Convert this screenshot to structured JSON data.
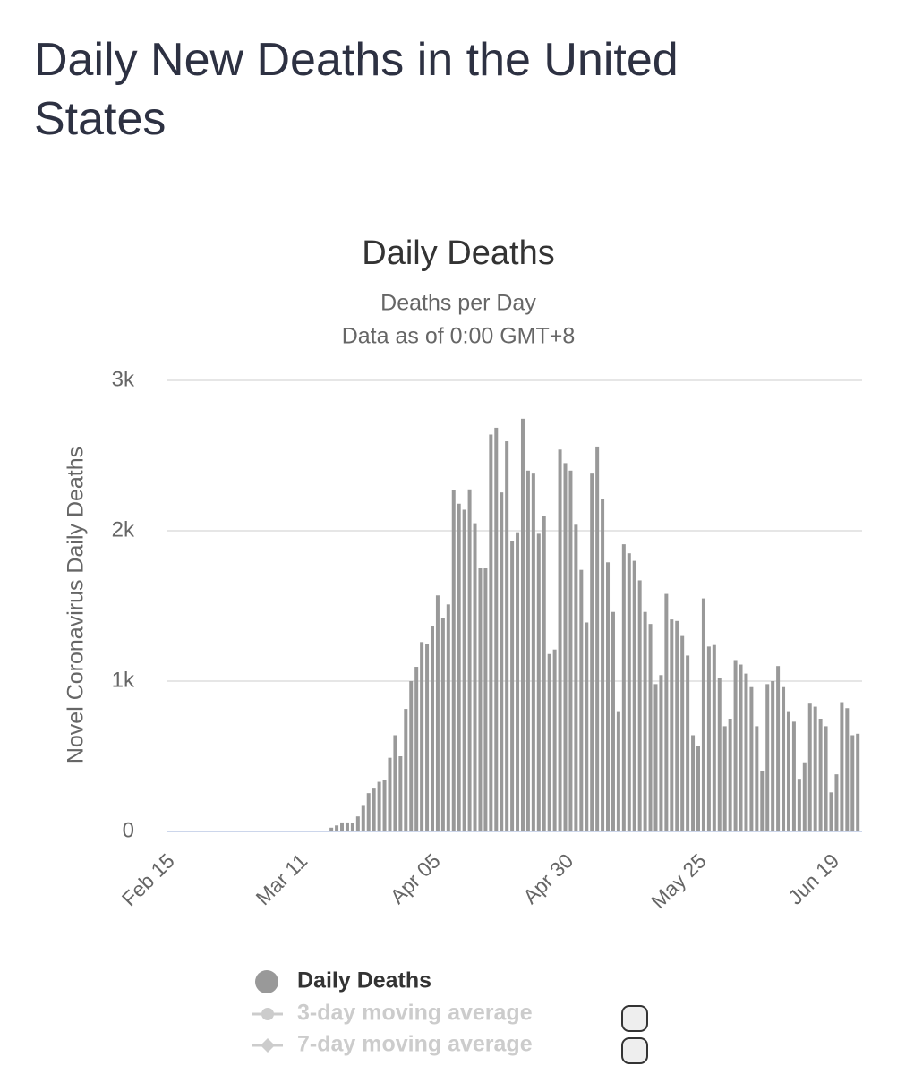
{
  "header": {
    "title": "Daily New Deaths in the United States"
  },
  "chart_data": {
    "type": "bar",
    "title": "Daily Deaths",
    "subtitle": [
      "Deaths per Day",
      "Data as of 0:00 GMT+8"
    ],
    "y_label": "Novel Coronavirus Daily Deaths",
    "categories": [
      "Feb 15",
      null,
      null,
      null,
      null,
      null,
      null,
      null,
      null,
      null,
      null,
      null,
      null,
      null,
      null,
      null,
      null,
      null,
      null,
      null,
      null,
      null,
      null,
      null,
      null,
      "Mar 11",
      null,
      null,
      null,
      null,
      null,
      null,
      null,
      null,
      null,
      null,
      null,
      null,
      null,
      null,
      null,
      null,
      null,
      null,
      null,
      null,
      null,
      null,
      null,
      null,
      "Apr 05",
      null,
      null,
      null,
      null,
      null,
      null,
      null,
      null,
      null,
      null,
      null,
      null,
      null,
      null,
      null,
      null,
      null,
      null,
      null,
      null,
      null,
      null,
      null,
      null,
      "Apr 30",
      null,
      null,
      null,
      null,
      null,
      null,
      null,
      null,
      null,
      null,
      null,
      null,
      null,
      null,
      null,
      null,
      null,
      null,
      null,
      null,
      null,
      null,
      null,
      null,
      "May 25",
      null,
      null,
      null,
      null,
      null,
      null,
      null,
      null,
      null,
      null,
      null,
      null,
      null,
      null,
      null,
      null,
      null,
      null,
      null,
      null,
      null,
      null,
      null,
      null,
      "Jun 19",
      null,
      null,
      null,
      null,
      null
    ],
    "series": [
      {
        "name": "Daily Deaths",
        "color": "#999999",
        "values": [
          0,
          0,
          0,
          0,
          0,
          0,
          0,
          0,
          0,
          0,
          0,
          0,
          0,
          0,
          0,
          0,
          0,
          0,
          0,
          0,
          0,
          0,
          0,
          0,
          0,
          0,
          0,
          0,
          0,
          0,
          0,
          25,
          40,
          60,
          60,
          55,
          100,
          170,
          255,
          285,
          330,
          345,
          490,
          640,
          500,
          815,
          1000,
          1095,
          1260,
          1245,
          1365,
          1570,
          1420,
          1510,
          2270,
          2180,
          2140,
          2275,
          2050,
          1750,
          1750,
          2640,
          2685,
          2255,
          2595,
          1930,
          1990,
          2745,
          2400,
          2380,
          1980,
          2100,
          1180,
          1210,
          2540,
          2450,
          2400,
          2040,
          1740,
          1390,
          2380,
          2560,
          2210,
          1790,
          1460,
          800,
          1910,
          1850,
          1800,
          1670,
          1460,
          1380,
          980,
          1040,
          1580,
          1410,
          1400,
          1300,
          1170,
          640,
          570,
          1550,
          1230,
          1240,
          1020,
          700,
          750,
          1140,
          1110,
          1050,
          960,
          700,
          400,
          980,
          1000,
          1100,
          960,
          800,
          730,
          350,
          460,
          850,
          830,
          750,
          700,
          260,
          380,
          860,
          820,
          640,
          650
        ]
      }
    ],
    "hidden_series": [
      {
        "name": "3-day moving average"
      },
      {
        "name": "7-day moving average"
      }
    ],
    "ylim": [
      0,
      3000
    ],
    "yticks": [
      0,
      {
        "value": 1000,
        "label": "1k"
      },
      {
        "value": 2000,
        "label": "2k"
      },
      {
        "value": 3000,
        "label": "3k"
      }
    ],
    "grid": true
  }
}
